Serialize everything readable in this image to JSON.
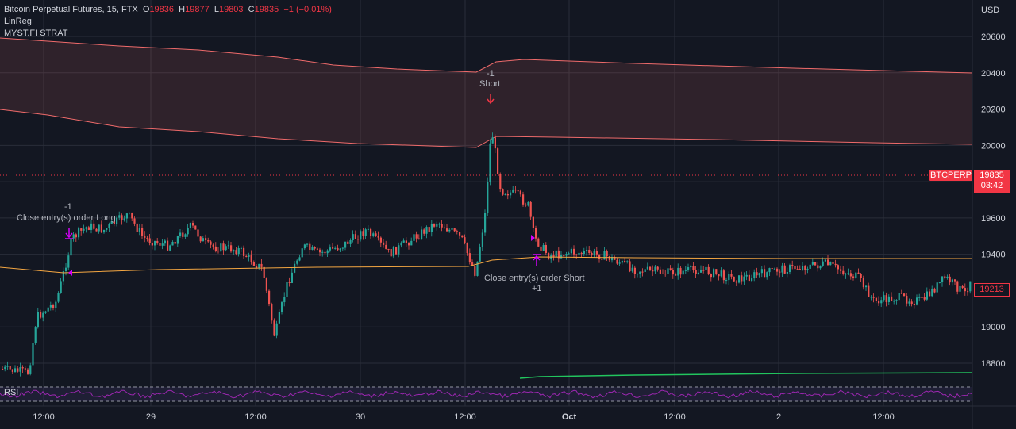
{
  "header": {
    "symbol": "Bitcoin Perpetual Futures, 15, FTX",
    "o_label": "O",
    "o_value": "19836",
    "h_label": "H",
    "h_value": "19877",
    "l_label": "L",
    "l_value": "19803",
    "c_label": "C",
    "c_value": "19835",
    "change": "−1 (−0.01%)"
  },
  "indicators": {
    "linreg": "LinReg",
    "strat": "MYST.FI STRAT",
    "rsi": "RSI"
  },
  "price_axis": {
    "currency": "USD",
    "ticks": [
      "20600",
      "20400",
      "20200",
      "20000",
      "19600",
      "19400",
      "19000",
      "18800"
    ],
    "tick_values": [
      20600,
      20400,
      20200,
      20000,
      19600,
      19400,
      19000,
      18800
    ],
    "range": [
      18700,
      20800
    ]
  },
  "time_axis": {
    "ticks": [
      "12:00",
      "29",
      "12:00",
      "30",
      "12:00",
      "Oct",
      "12:00",
      "2",
      "12:00"
    ]
  },
  "badges": {
    "symbol_tag": "BTCPERP",
    "last_price": "19835",
    "countdown": "03:42",
    "cursor_price": "19213"
  },
  "annotations": {
    "short_qty": "-1",
    "short_label": "Short",
    "close_long_qty": "-1",
    "close_long_label": "Close entry(s) order Long",
    "close_short_label": "Close entry(s) order Short",
    "close_short_qty": "+1"
  },
  "colors": {
    "background": "#131722",
    "up": "#26a69a",
    "down": "#ef5350",
    "band": "#f06b6b",
    "ma": "#f5a742",
    "green_line": "#22c55e",
    "rsi": "#9c27b0"
  },
  "chart_data": {
    "type": "line",
    "x": [
      "Sep 28 12:00",
      "Sep 29",
      "Sep 29 12:00",
      "Sep 30",
      "Sep 30 12:00",
      "Oct 1",
      "Oct 1 12:00",
      "Oct 2",
      "Oct 2 12:00"
    ],
    "series": [
      {
        "values": [
          19300,
          19620,
          19430,
          19600,
          19350,
          19380,
          19330,
          19350,
          19200
        ]
      }
    ],
    "ylim": [
      18700,
      20800
    ]
  }
}
